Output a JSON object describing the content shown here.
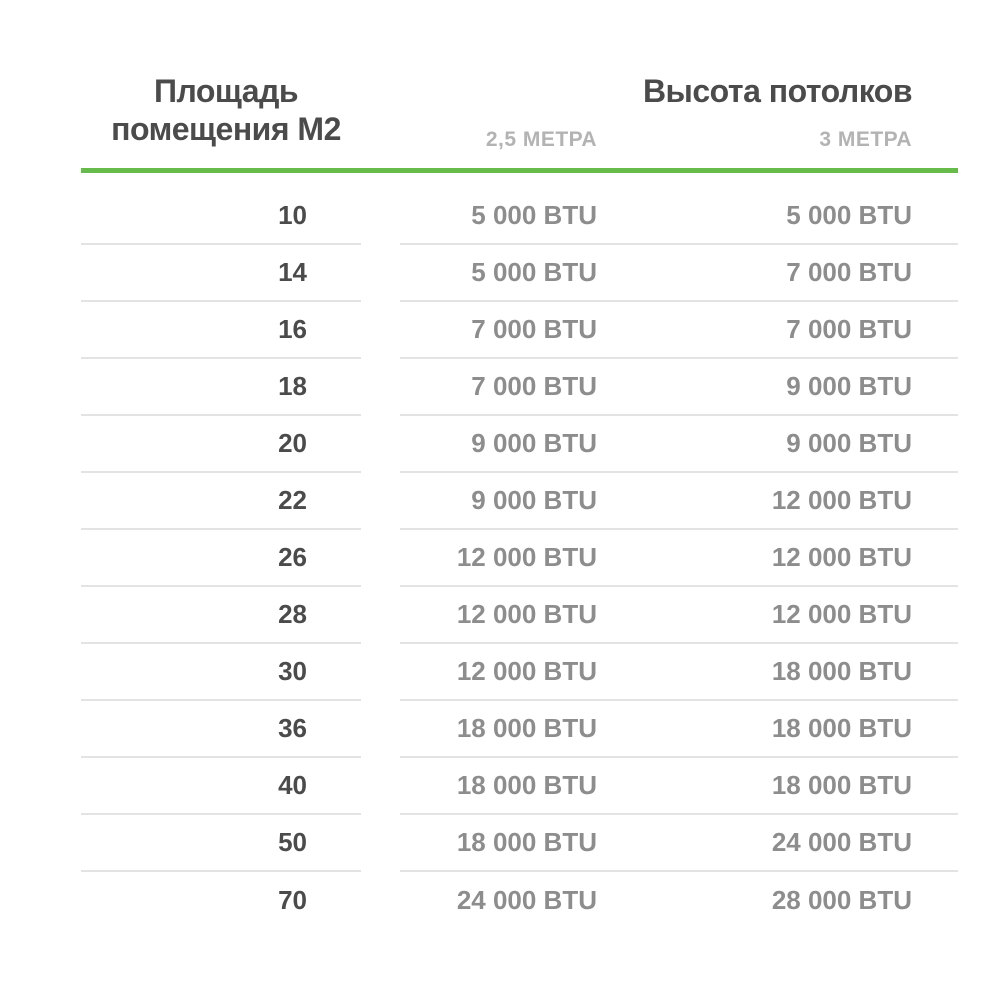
{
  "table": {
    "header": {
      "area_title_line1": "Площадь",
      "area_title_line2": "помещения М2",
      "height_title": "Высота потолков",
      "col_2_5_label": "2,5 МЕТРА",
      "col_3_label": "3 МЕТРА"
    },
    "rows": [
      {
        "area": "10",
        "btu25": "5 000 BTU",
        "btu3": "5 000 BTU"
      },
      {
        "area": "14",
        "btu25": "5 000 BTU",
        "btu3": "7 000 BTU"
      },
      {
        "area": "16",
        "btu25": "7 000 BTU",
        "btu3": "7 000 BTU"
      },
      {
        "area": "18",
        "btu25": "7 000 BTU",
        "btu3": "9 000 BTU"
      },
      {
        "area": "20",
        "btu25": "9 000 BTU",
        "btu3": "9 000 BTU"
      },
      {
        "area": "22",
        "btu25": "9 000 BTU",
        "btu3": "12 000 BTU"
      },
      {
        "area": "26",
        "btu25": "12 000 BTU",
        "btu3": "12 000 BTU"
      },
      {
        "area": "28",
        "btu25": "12 000 BTU",
        "btu3": "12 000 BTU"
      },
      {
        "area": "30",
        "btu25": "12 000 BTU",
        "btu3": "18 000 BTU"
      },
      {
        "area": "36",
        "btu25": "18 000 BTU",
        "btu3": "18 000 BTU"
      },
      {
        "area": "40",
        "btu25": "18 000 BTU",
        "btu3": "18 000 BTU"
      },
      {
        "area": "50",
        "btu25": "18 000 BTU",
        "btu3": "24 000 BTU"
      },
      {
        "area": "70",
        "btu25": "24 000 BTU",
        "btu3": "28 000 BTU"
      }
    ],
    "colors": {
      "accent_green": "#66bb4a",
      "dark_text": "#4b4b4b",
      "btu_text": "#8d8d8d",
      "subheader_text": "#b3b3b3",
      "divider": "#e3e3e3"
    }
  },
  "chart_data": {
    "type": "table",
    "title": "Высота потолков",
    "columns": [
      "Площадь помещения М2",
      "2,5 МЕТРА",
      "3 МЕТРА"
    ],
    "rows": [
      [
        10,
        "5 000 BTU",
        "5 000 BTU"
      ],
      [
        14,
        "5 000 BTU",
        "7 000 BTU"
      ],
      [
        16,
        "7 000 BTU",
        "7 000 BTU"
      ],
      [
        18,
        "7 000 BTU",
        "9 000 BTU"
      ],
      [
        20,
        "9 000 BTU",
        "9 000 BTU"
      ],
      [
        22,
        "9 000 BTU",
        "12 000 BTU"
      ],
      [
        26,
        "12 000 BTU",
        "12 000 BTU"
      ],
      [
        28,
        "12 000 BTU",
        "12 000 BTU"
      ],
      [
        30,
        "12 000 BTU",
        "18 000 BTU"
      ],
      [
        36,
        "18 000 BTU",
        "18 000 BTU"
      ],
      [
        40,
        "18 000 BTU",
        "18 000 BTU"
      ],
      [
        50,
        "18 000 BTU",
        "24 000 BTU"
      ],
      [
        70,
        "24 000 BTU",
        "28 000 BTU"
      ]
    ],
    "btu_values_25m": [
      5000,
      5000,
      7000,
      7000,
      9000,
      9000,
      12000,
      12000,
      12000,
      18000,
      18000,
      18000,
      24000
    ],
    "btu_values_3m": [
      5000,
      7000,
      7000,
      9000,
      9000,
      12000,
      12000,
      12000,
      18000,
      18000,
      18000,
      24000,
      28000
    ],
    "areas_m2": [
      10,
      14,
      16,
      18,
      20,
      22,
      26,
      28,
      30,
      36,
      40,
      50,
      70
    ]
  }
}
